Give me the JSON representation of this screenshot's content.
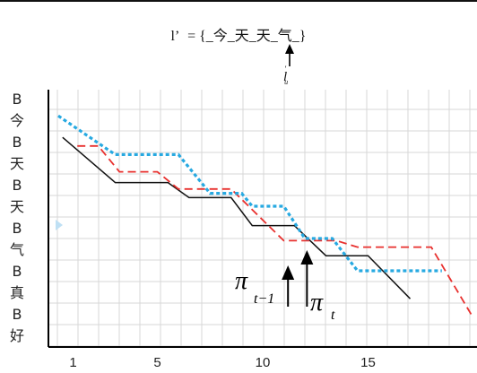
{
  "header": {
    "sequence_prefix": "l’",
    "sequence_body": "= {_今_天_天_气_}",
    "pointer_label_base": "l",
    "pointer_label_sup": "′",
    "pointer_label_sub": "u"
  },
  "chart_data": {
    "type": "line",
    "y_tick_labels": [
      "B",
      "今",
      "B",
      "天",
      "B",
      "天",
      "B",
      "气",
      "B",
      "真",
      "B",
      "好"
    ],
    "x_tick_labels": [
      "1",
      "5",
      "10",
      "15"
    ],
    "x_tick_values": [
      1,
      5,
      10,
      15
    ],
    "xlim": [
      0,
      20
    ],
    "grid": true,
    "series": [
      {
        "color": "#111111",
        "style": "solid",
        "points": [
          [
            0.5,
            1.8
          ],
          [
            3,
            3.9
          ],
          [
            5.5,
            3.9
          ],
          [
            6.5,
            4.6
          ],
          [
            8.5,
            4.6
          ],
          [
            9.5,
            5.9
          ],
          [
            11.5,
            5.9
          ],
          [
            13,
            7.3
          ],
          [
            15,
            7.3
          ],
          [
            17,
            9.3
          ]
        ]
      },
      {
        "color": "#e8302e",
        "style": "dashed",
        "points": [
          [
            1.2,
            2.2
          ],
          [
            2.2,
            2.2
          ],
          [
            3.2,
            3.4
          ],
          [
            5,
            3.4
          ],
          [
            6,
            4.2
          ],
          [
            8.5,
            4.2
          ],
          [
            11,
            6.6
          ],
          [
            13.5,
            6.6
          ],
          [
            14.5,
            6.9
          ],
          [
            18,
            6.9
          ],
          [
            20,
            10.2
          ]
        ]
      },
      {
        "color": "#27a9e1",
        "style": "dotted",
        "points": [
          [
            0.3,
            0.8
          ],
          [
            3,
            2.6
          ],
          [
            6,
            2.6
          ],
          [
            7.5,
            4.4
          ],
          [
            9,
            4.4
          ],
          [
            9.5,
            5
          ],
          [
            11,
            5
          ],
          [
            12,
            6.5
          ],
          [
            13.3,
            6.5
          ],
          [
            14.5,
            8
          ],
          [
            16.5,
            8
          ],
          [
            17.5,
            8
          ],
          [
            18.5,
            8
          ]
        ]
      }
    ],
    "annotations": [
      {
        "text": "π",
        "sub": "t−1",
        "arrow_x": 11.2
      },
      {
        "text": "π",
        "sub": "t",
        "arrow_x": 12.1
      }
    ]
  },
  "colors": {
    "axis": "#000000",
    "grid": "#d7d7d7",
    "triangle": "#bfe0f4"
  }
}
